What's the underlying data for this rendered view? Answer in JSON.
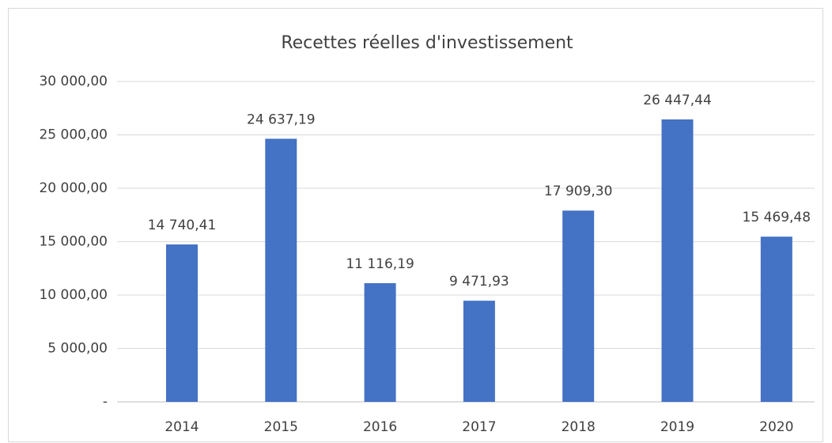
{
  "chart_data": {
    "type": "bar",
    "title": "Recettes réelles d'investissement",
    "categories": [
      "2014",
      "2015",
      "2016",
      "2017",
      "2018",
      "2019",
      "2020"
    ],
    "values": [
      14740.41,
      24637.19,
      11116.19,
      9471.93,
      17909.3,
      26447.44,
      15469.48
    ],
    "value_labels": [
      "14 740,41",
      "24 637,19",
      "11 116,19",
      "9 471,93",
      "17 909,30",
      "26 447,44",
      "15 469,48"
    ],
    "color": "#4472c4",
    "ylim": [
      0,
      30000
    ],
    "yticks": [
      {
        "value": 0,
        "label": "-"
      },
      {
        "value": 5000,
        "label": "5 000,00"
      },
      {
        "value": 10000,
        "label": "10 000,00"
      },
      {
        "value": 15000,
        "label": "15 000,00"
      },
      {
        "value": 20000,
        "label": "20 000,00"
      },
      {
        "value": 25000,
        "label": "25 000,00"
      },
      {
        "value": 30000,
        "label": "30 000,00"
      }
    ],
    "grid": true
  }
}
